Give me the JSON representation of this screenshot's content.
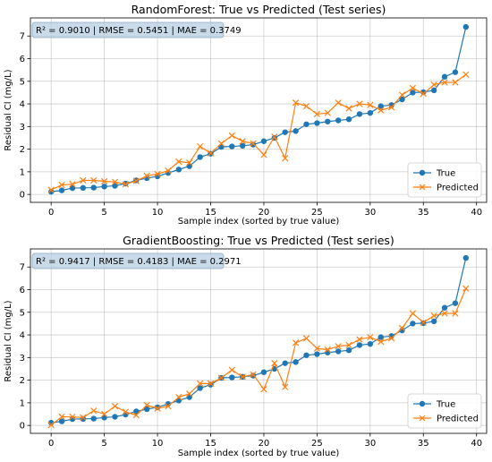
{
  "chart_data": [
    {
      "type": "line",
      "title": "RandomForest: True vs Predicted (Test series)",
      "xlabel": "Sample index (sorted by true value)",
      "ylabel": "Residual Cl (mg/L)",
      "xlim": [
        -1.95,
        40.95
      ],
      "ylim": [
        -0.35,
        7.8
      ],
      "xticks": [
        0,
        5,
        10,
        15,
        20,
        25,
        30,
        35,
        40
      ],
      "yticks": [
        0,
        1,
        2,
        3,
        4,
        5,
        6,
        7
      ],
      "grid": true,
      "metrics": "R² = 0.9010 | RMSE = 0.5451 | MAE = 0.3749",
      "legend_position": "lower-right",
      "x": [
        0,
        1,
        2,
        3,
        4,
        5,
        6,
        7,
        8,
        9,
        10,
        11,
        12,
        13,
        14,
        15,
        16,
        17,
        18,
        19,
        20,
        21,
        22,
        23,
        24,
        25,
        26,
        27,
        28,
        29,
        30,
        31,
        32,
        33,
        34,
        35,
        36,
        37,
        38,
        39
      ],
      "series": [
        {
          "name": "True",
          "color": "#1f77b4",
          "marker": "circle",
          "values": [
            0.12,
            0.18,
            0.28,
            0.29,
            0.3,
            0.35,
            0.38,
            0.48,
            0.62,
            0.72,
            0.8,
            0.95,
            1.1,
            1.25,
            1.65,
            1.8,
            2.1,
            2.12,
            2.15,
            2.2,
            2.35,
            2.5,
            2.75,
            2.8,
            3.1,
            3.15,
            3.22,
            3.27,
            3.32,
            3.55,
            3.6,
            3.9,
            3.95,
            4.2,
            4.5,
            4.52,
            4.6,
            5.2,
            5.4,
            7.4
          ]
        },
        {
          "name": "Predicted",
          "color": "#ff7f0e",
          "marker": "x",
          "values": [
            0.2,
            0.42,
            0.45,
            0.62,
            0.62,
            0.58,
            0.55,
            0.45,
            0.6,
            0.82,
            0.9,
            1.05,
            1.45,
            1.4,
            2.12,
            1.82,
            2.25,
            2.6,
            2.35,
            2.25,
            1.75,
            2.55,
            1.6,
            4.05,
            3.9,
            3.55,
            3.6,
            4.05,
            3.8,
            4.0,
            3.95,
            3.72,
            3.85,
            4.4,
            4.7,
            4.45,
            4.85,
            4.95,
            4.95,
            5.3
          ]
        }
      ]
    },
    {
      "type": "line",
      "title": "GradientBoosting: True vs Predicted (Test series)",
      "xlabel": "Sample index (sorted by true value)",
      "ylabel": "Residual Cl (mg/L)",
      "xlim": [
        -1.95,
        40.95
      ],
      "ylim": [
        -0.35,
        7.8
      ],
      "xticks": [
        0,
        5,
        10,
        15,
        20,
        25,
        30,
        35,
        40
      ],
      "yticks": [
        0,
        1,
        2,
        3,
        4,
        5,
        6,
        7
      ],
      "grid": true,
      "metrics": "R² = 0.9417 | RMSE = 0.4183 | MAE = 0.2971",
      "legend_position": "lower-right",
      "x": [
        0,
        1,
        2,
        3,
        4,
        5,
        6,
        7,
        8,
        9,
        10,
        11,
        12,
        13,
        14,
        15,
        16,
        17,
        18,
        19,
        20,
        21,
        22,
        23,
        24,
        25,
        26,
        27,
        28,
        29,
        30,
        31,
        32,
        33,
        34,
        35,
        36,
        37,
        38,
        39
      ],
      "series": [
        {
          "name": "True",
          "color": "#1f77b4",
          "marker": "circle",
          "values": [
            0.12,
            0.18,
            0.28,
            0.29,
            0.3,
            0.35,
            0.38,
            0.48,
            0.62,
            0.72,
            0.8,
            0.95,
            1.1,
            1.25,
            1.65,
            1.8,
            2.1,
            2.12,
            2.15,
            2.2,
            2.35,
            2.5,
            2.75,
            2.8,
            3.1,
            3.15,
            3.22,
            3.27,
            3.32,
            3.55,
            3.6,
            3.9,
            3.95,
            4.2,
            4.5,
            4.52,
            4.6,
            5.2,
            5.4,
            7.4
          ]
        },
        {
          "name": "Predicted",
          "color": "#ff7f0e",
          "marker": "x",
          "values": [
            0.02,
            0.38,
            0.38,
            0.35,
            0.65,
            0.5,
            0.85,
            0.6,
            0.45,
            0.9,
            0.75,
            0.85,
            1.25,
            1.4,
            1.85,
            1.85,
            2.1,
            2.45,
            2.15,
            2.25,
            1.6,
            2.75,
            1.7,
            3.65,
            3.85,
            3.4,
            3.35,
            3.5,
            3.55,
            3.8,
            3.9,
            3.7,
            3.85,
            4.3,
            4.95,
            4.55,
            4.85,
            4.95,
            4.95,
            6.05
          ]
        }
      ]
    }
  ]
}
